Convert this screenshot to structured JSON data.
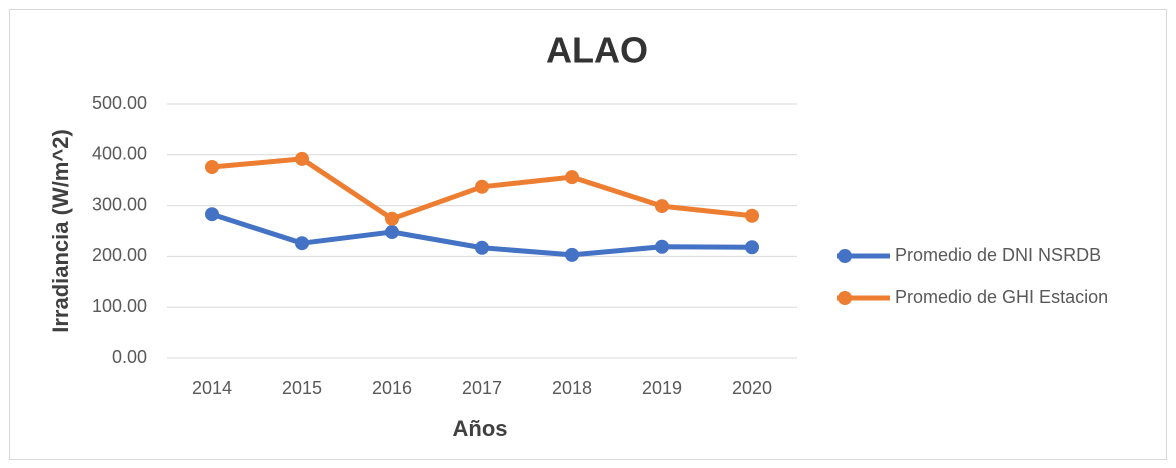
{
  "chart_data": {
    "type": "line",
    "title": "ALAO",
    "x_label": "Años",
    "y_label": "Irradiancia (W/m^2)",
    "categories": [
      "2014",
      "2015",
      "2016",
      "2017",
      "2018",
      "2019",
      "2020"
    ],
    "series": [
      {
        "name": "Promedio de DNI NSRDB",
        "color": "#4472c4",
        "values": [
          283,
          226,
          248,
          217,
          203,
          219,
          218
        ]
      },
      {
        "name": "Promedio de GHI Estacion",
        "color": "#ed7d31",
        "values": [
          376,
          392,
          274,
          337,
          356,
          299,
          280
        ]
      }
    ],
    "ylim": [
      0,
      500
    ],
    "yticks": [
      {
        "value": 0,
        "label": "0.00"
      },
      {
        "value": 100,
        "label": "100.00"
      },
      {
        "value": 200,
        "label": "200.00"
      },
      {
        "value": 300,
        "label": "300.00"
      },
      {
        "value": 400,
        "label": "400.00"
      },
      {
        "value": 500,
        "label": "500.00"
      }
    ],
    "grid": true,
    "legend": "right"
  }
}
